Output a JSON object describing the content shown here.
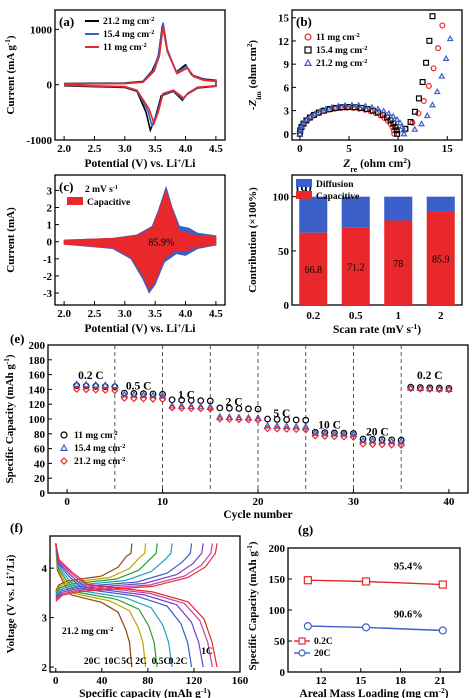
{
  "chart_data": [
    {
      "id": "a",
      "panel_label": "(a)",
      "type": "line",
      "xlabel": "Potential (V) vs. Li",
      "xlabel_sup": "+",
      "xlabel_tail": "/Li",
      "ylabel": "Current (mA g",
      "ylabel_sup": "-1",
      "ylabel_tail": ")",
      "xlim": [
        1.85,
        4.65
      ],
      "ylim": [
        -1000,
        1350
      ],
      "xticks": [
        2.0,
        2.5,
        3.0,
        3.5,
        4.0,
        4.5
      ],
      "xtick_labels": [
        "2.0",
        "2.5",
        "3.0",
        "3.5",
        "4.0",
        "4.5"
      ],
      "yticks": [
        -1000,
        0,
        1000
      ],
      "ytick_labels": [
        "-1000",
        "0",
        "1000"
      ],
      "legend": [
        {
          "name": "21.2 mg cm",
          "sup": "-2",
          "color": "#000000"
        },
        {
          "name": "15.4 mg cm",
          "sup": "-2",
          "color": "#3a5fc8"
        },
        {
          "name": "11 mg cm",
          "sup": "-2",
          "color": "#e8282b"
        }
      ],
      "series": [
        {
          "name": "21.2 mg cm-2",
          "color": "#000000",
          "anodic": [
            [
              2.0,
              20
            ],
            [
              3.0,
              30
            ],
            [
              3.3,
              60
            ],
            [
              3.45,
              250
            ],
            [
              3.55,
              500
            ],
            [
              3.62,
              1080
            ],
            [
              3.7,
              620
            ],
            [
              3.85,
              230
            ],
            [
              4.0,
              360
            ],
            [
              4.1,
              180
            ],
            [
              4.3,
              100
            ],
            [
              4.5,
              80
            ]
          ],
          "cathodic": [
            [
              4.5,
              -30
            ],
            [
              4.2,
              -60
            ],
            [
              4.02,
              -180
            ],
            [
              3.95,
              -280
            ],
            [
              3.8,
              -120
            ],
            [
              3.6,
              -200
            ],
            [
              3.5,
              -600
            ],
            [
              3.42,
              -820
            ],
            [
              3.35,
              -500
            ],
            [
              3.2,
              -120
            ],
            [
              3.0,
              -50
            ],
            [
              2.0,
              -20
            ]
          ]
        },
        {
          "name": "15.4 mg cm-2",
          "color": "#3a5fc8",
          "anodic": [
            [
              2.0,
              15
            ],
            [
              3.0,
              25
            ],
            [
              3.3,
              50
            ],
            [
              3.47,
              260
            ],
            [
              3.56,
              560
            ],
            [
              3.63,
              1120
            ],
            [
              3.7,
              640
            ],
            [
              3.85,
              220
            ],
            [
              4.02,
              330
            ],
            [
              4.12,
              170
            ],
            [
              4.3,
              90
            ],
            [
              4.5,
              70
            ]
          ],
          "cathodic": [
            [
              4.5,
              -25
            ],
            [
              4.2,
              -50
            ],
            [
              4.03,
              -170
            ],
            [
              3.96,
              -260
            ],
            [
              3.8,
              -110
            ],
            [
              3.62,
              -180
            ],
            [
              3.52,
              -560
            ],
            [
              3.45,
              -750
            ],
            [
              3.38,
              -470
            ],
            [
              3.2,
              -110
            ],
            [
              3.0,
              -40
            ],
            [
              2.0,
              -15
            ]
          ]
        },
        {
          "name": "11 mg cm-2",
          "color": "#e8282b",
          "anodic": [
            [
              2.0,
              10
            ],
            [
              3.0,
              20
            ],
            [
              3.3,
              45
            ],
            [
              3.48,
              240
            ],
            [
              3.57,
              520
            ],
            [
              3.63,
              1050
            ],
            [
              3.7,
              600
            ],
            [
              3.86,
              200
            ],
            [
              4.03,
              300
            ],
            [
              4.13,
              150
            ],
            [
              4.3,
              80
            ],
            [
              4.5,
              60
            ]
          ],
          "cathodic": [
            [
              4.5,
              -20
            ],
            [
              4.2,
              -45
            ],
            [
              4.04,
              -150
            ],
            [
              3.97,
              -240
            ],
            [
              3.8,
              -100
            ],
            [
              3.63,
              -160
            ],
            [
              3.55,
              -500
            ],
            [
              3.48,
              -700
            ],
            [
              3.4,
              -440
            ],
            [
              3.2,
              -100
            ],
            [
              3.0,
              -35
            ],
            [
              2.0,
              -10
            ]
          ]
        }
      ]
    },
    {
      "id": "b",
      "panel_label": "(b)",
      "type": "scatter",
      "xlabel": "Z",
      "xlabel_sub": "re",
      "xlabel_tail": " (ohm cm",
      "xlabel_sup": "2",
      "xlabel_end": ")",
      "ylabel": "-Z",
      "ylabel_sub": "im",
      "ylabel_tail": " (ohm cm",
      "ylabel_sup": "2",
      "ylabel_end": ")",
      "xlim": [
        -0.8,
        16.5
      ],
      "ylim": [
        -0.8,
        16
      ],
      "xticks": [
        0,
        5,
        10,
        15
      ],
      "xtick_labels": [
        "0",
        "5",
        "10",
        "15"
      ],
      "yticks": [
        0,
        3,
        6,
        9,
        12,
        15
      ],
      "ytick_labels": [
        "0",
        "3",
        "6",
        "9",
        "12",
        "15"
      ],
      "legend": [
        {
          "name": "11 mg cm",
          "sup": "-2",
          "color": "#e8282b",
          "marker": "circle"
        },
        {
          "name": "15.4 mg cm",
          "sup": "-2",
          "color": "#000000",
          "marker": "square"
        },
        {
          "name": "21.2 mg cm",
          "sup": "-2",
          "color": "#3a5fc8",
          "marker": "triangle"
        }
      ],
      "series": [
        {
          "name": "11 mg cm-2",
          "color": "#e8282b",
          "marker": "circle",
          "R": 9.6,
          "tail_end": 14.5,
          "tail_top": 14.0
        },
        {
          "name": "15.4 mg cm-2",
          "color": "#000000",
          "marker": "square",
          "R": 9.9,
          "tail_end": 13.5,
          "tail_top": 15.2
        },
        {
          "name": "21.2 mg cm-2",
          "color": "#3a5fc8",
          "marker": "triangle",
          "R": 10.6,
          "tail_end": 15.3,
          "tail_top": 12.3
        }
      ]
    },
    {
      "id": "c",
      "panel_label": "(c)",
      "type": "area",
      "xlabel": "Potential (V) vs. Li",
      "xlabel_sup": "+",
      "xlabel_tail": "/Li",
      "ylabel": "Current (mA)",
      "xlim": [
        1.85,
        4.65
      ],
      "ylim": [
        -3.7,
        3.9
      ],
      "xticks": [
        2.0,
        2.5,
        3.0,
        3.5,
        4.0,
        4.5
      ],
      "xtick_labels": [
        "2.0",
        "2.5",
        "3.0",
        "3.5",
        "4.0",
        "4.5"
      ],
      "yticks": [
        -3,
        -2,
        -1,
        0,
        1,
        2,
        3
      ],
      "ytick_labels": [
        "-3",
        "-2",
        "-1",
        "0",
        "1",
        "2",
        "3"
      ],
      "annotation": "2 mV s",
      "annotation_sup": "-1",
      "legend": [
        {
          "name": "Capacitive",
          "color": "#e8282b"
        }
      ],
      "percent_label": "85.9%",
      "total_color": "#3a5fc8",
      "capacitive_color": "#e8282b",
      "total_anodic": [
        [
          2.0,
          0.1
        ],
        [
          2.8,
          0.2
        ],
        [
          3.2,
          0.4
        ],
        [
          3.45,
          0.9
        ],
        [
          3.55,
          1.8
        ],
        [
          3.68,
          3.2
        ],
        [
          3.78,
          2.0
        ],
        [
          3.9,
          0.9
        ],
        [
          4.05,
          0.8
        ],
        [
          4.2,
          0.5
        ],
        [
          4.5,
          0.35
        ]
      ],
      "total_cathodic": [
        [
          4.5,
          -0.2
        ],
        [
          4.2,
          -0.4
        ],
        [
          4.0,
          -0.8
        ],
        [
          3.85,
          -0.7
        ],
        [
          3.65,
          -1.2
        ],
        [
          3.5,
          -2.5
        ],
        [
          3.4,
          -3.0
        ],
        [
          3.3,
          -2.2
        ],
        [
          3.1,
          -1.0
        ],
        [
          2.8,
          -0.4
        ],
        [
          2.0,
          -0.15
        ]
      ],
      "cap_anodic": [
        [
          2.0,
          0.1
        ],
        [
          2.8,
          0.2
        ],
        [
          3.2,
          0.35
        ],
        [
          3.45,
          0.8
        ],
        [
          3.55,
          1.7
        ],
        [
          3.68,
          3.0
        ],
        [
          3.78,
          1.9
        ],
        [
          3.9,
          0.6
        ],
        [
          4.05,
          0.5
        ],
        [
          4.2,
          0.35
        ],
        [
          4.5,
          0.3
        ]
      ],
      "cap_cathodic": [
        [
          4.5,
          -0.2
        ],
        [
          4.2,
          -0.3
        ],
        [
          4.0,
          -0.55
        ],
        [
          3.85,
          -0.5
        ],
        [
          3.65,
          -1.0
        ],
        [
          3.5,
          -2.3
        ],
        [
          3.4,
          -2.8
        ],
        [
          3.3,
          -2.0
        ],
        [
          3.1,
          -0.9
        ],
        [
          2.8,
          -0.35
        ],
        [
          2.0,
          -0.15
        ]
      ]
    },
    {
      "id": "d",
      "panel_label": "(d)",
      "type": "bar",
      "xlabel": "Scan rate (mV s",
      "xlabel_sup": "-1",
      "xlabel_tail": ")",
      "ylabel": "Contribution (×100%)",
      "categories": [
        "0.2",
        "0.5",
        "1",
        "2"
      ],
      "ylim": [
        0,
        120
      ],
      "yticks": [
        0,
        50,
        100
      ],
      "ytick_labels": [
        "0",
        "50",
        "100"
      ],
      "legend": [
        {
          "name": "Diffusion",
          "color": "#3a5fc8"
        },
        {
          "name": "Capacitive",
          "color": "#e8282b"
        }
      ],
      "series": [
        {
          "name": "Capacitive",
          "color": "#e8282b",
          "values": [
            66.8,
            71.2,
            78,
            85.9
          ]
        },
        {
          "name": "Diffusion",
          "color": "#3a5fc8",
          "values": [
            33.2,
            28.8,
            22,
            14.1
          ]
        }
      ],
      "value_labels": [
        "66.8",
        "71.2",
        "78",
        "85.9"
      ]
    },
    {
      "id": "e",
      "panel_label": "(e)",
      "type": "scatter",
      "xlabel": "Cycle number",
      "ylabel": "Specific Capacity (mAh g",
      "ylabel_sup": "-1",
      "ylabel_tail": ")",
      "xlim": [
        -2,
        42
      ],
      "ylim": [
        0,
        200
      ],
      "xticks": [
        0,
        10,
        20,
        30,
        40
      ],
      "xtick_labels": [
        "0",
        "10",
        "20",
        "30",
        "40"
      ],
      "yticks": [
        0,
        20,
        40,
        60,
        80,
        100,
        120,
        140,
        160,
        180,
        200
      ],
      "ytick_labels": [
        "0",
        "20",
        "40",
        "60",
        "80",
        "100",
        "120",
        "140",
        "160",
        "180",
        "200"
      ],
      "dividers": [
        5,
        10,
        15,
        20,
        25,
        30,
        35
      ],
      "rate_labels": [
        {
          "text": "0.2 C",
          "x": 2.5,
          "y": 154
        },
        {
          "text": "0.5 C",
          "x": 7.5,
          "y": 140
        },
        {
          "text": "1 C",
          "x": 12.5,
          "y": 128
        },
        {
          "text": "2 C",
          "x": 17.5,
          "y": 118
        },
        {
          "text": "5 C",
          "x": 22.5,
          "y": 103
        },
        {
          "text": "10 C",
          "x": 27.5,
          "y": 87
        },
        {
          "text": "20 C",
          "x": 32.5,
          "y": 78
        },
        {
          "text": "0.2 C",
          "x": 38,
          "y": 154
        }
      ],
      "legend": [
        {
          "name": "11 mg cm",
          "sup": "-2",
          "color": "#000000",
          "marker": "circle"
        },
        {
          "name": "15.4 mg cm",
          "sup": "-2",
          "color": "#3a5fc8",
          "marker": "triangle"
        },
        {
          "name": "21.2 mg cm",
          "sup": "-2",
          "color": "#e8282b",
          "marker": "diamond"
        }
      ],
      "series": [
        {
          "name": "11 mg cm-2",
          "color": "#000000",
          "marker": "circle",
          "segment_values": [
            145,
            135,
            126,
            115,
            100,
            82,
            73,
            143
          ]
        },
        {
          "name": "15.4 mg cm-2",
          "color": "#3a5fc8",
          "marker": "triangle",
          "segment_values": [
            147,
            133,
            118,
            103,
            91,
            81,
            71,
            142
          ]
        },
        {
          "name": "21.2 mg cm-2",
          "color": "#e8282b",
          "marker": "diamond",
          "segment_values": [
            140,
            128,
            115,
            100,
            87,
            77,
            66,
            141
          ]
        }
      ]
    },
    {
      "id": "f",
      "panel_label": "(f)",
      "type": "line",
      "xlabel": "Specific capacity (mAh g",
      "xlabel_sup": "-1",
      "xlabel_tail": ")",
      "ylabel": "Voltage (V vs. Li",
      "ylabel_sup": "+",
      "ylabel_tail": "/Li)",
      "xlim": [
        -5,
        160
      ],
      "ylim": [
        1.9,
        4.65
      ],
      "xticks": [
        0,
        40,
        80,
        120,
        160
      ],
      "xtick_labels": [
        "0",
        "40",
        "80",
        "120",
        "160"
      ],
      "yticks": [
        2,
        3,
        4
      ],
      "ytick_labels": [
        "2",
        "3",
        "4"
      ],
      "annotation": "21.2 mg cm",
      "annotation_sup": "-2",
      "rate_labels": [
        "20C",
        "10C",
        "5C",
        "2C",
        "0.5C",
        "0.2C",
        "1C"
      ],
      "capacities": [
        66,
        78,
        88,
        101,
        118,
        128,
        136,
        140
      ],
      "colors": [
        "#8b4513",
        "#c8a000",
        "#2ca02c",
        "#1fa0c8",
        "#3a5fc8",
        "#7b3fc8",
        "#c83fa0",
        "#e8282b"
      ]
    },
    {
      "id": "g",
      "panel_label": "(g)",
      "type": "line",
      "xlabel": "Areal Mass Loading (mg cm",
      "xlabel_sup": "-2",
      "xlabel_tail": ")",
      "ylabel": "Specific Capacity (mAh g",
      "ylabel_sup": "-1",
      "ylabel_tail": ")",
      "xlim": [
        9.5,
        22.5
      ],
      "ylim": [
        0,
        200
      ],
      "xticks": [
        12,
        15,
        18,
        21
      ],
      "xtick_labels": [
        "12",
        "15",
        "18",
        "21"
      ],
      "yticks": [
        0,
        50,
        100,
        150,
        200
      ],
      "ytick_labels": [
        "0",
        "50",
        "100",
        "150",
        "200"
      ],
      "legend": [
        {
          "name": "0.2C",
          "color": "#e8282b",
          "marker": "square"
        },
        {
          "name": "20C",
          "color": "#3a5fc8",
          "marker": "circle"
        }
      ],
      "x": [
        11,
        15.4,
        21.2
      ],
      "series": [
        {
          "name": "0.2C",
          "color": "#e8282b",
          "marker": "square",
          "values": [
            148,
            146,
            141
          ]
        },
        {
          "name": "20C",
          "color": "#3a5fc8",
          "marker": "circle",
          "values": [
            74,
            72,
            67
          ]
        }
      ],
      "annotations": [
        {
          "text": "95.4%",
          "x": 17.5,
          "y": 165
        },
        {
          "text": "90.6%",
          "x": 17.5,
          "y": 88
        }
      ]
    }
  ]
}
